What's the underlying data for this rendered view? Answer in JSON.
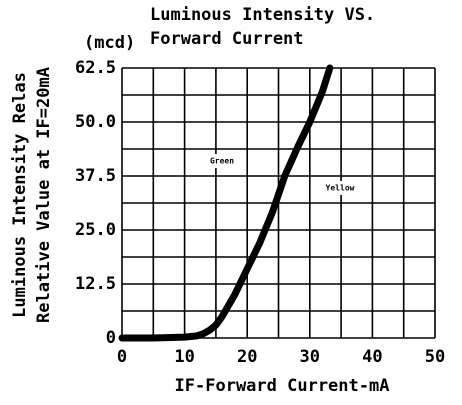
{
  "chart_data": {
    "type": "line",
    "title": "Luminous Intensity VS.",
    "subtitle": "Forward Current",
    "y_unit": "(mcd)",
    "y_label": [
      "Luminous Intensity Relas",
      "Relative Value at IF=20mA"
    ],
    "x_label": "IF-Forward Current-mA",
    "annotations": [
      "Green",
      "Yellow"
    ],
    "x": [
      0,
      5,
      10,
      12,
      13,
      14,
      15,
      16,
      17,
      18,
      19,
      20,
      22,
      24,
      26,
      28,
      30,
      32,
      33.2
    ],
    "series": [
      {
        "color": "#000000",
        "values": [
          0,
          0,
          0.2,
          0.5,
          1,
          1.8,
          3,
          5,
          7.5,
          10,
          13,
          16,
          22,
          29,
          37.5,
          44,
          50,
          57,
          62.5
        ]
      }
    ],
    "xlim": [
      0,
      50
    ],
    "xticks": [
      0,
      10,
      20,
      30,
      40,
      50
    ],
    "xminor": [
      5,
      15,
      25,
      35,
      45
    ],
    "ylim": [
      0,
      62.5
    ],
    "yticks": [
      0,
      12.5,
      {
        "value": 25,
        "label": "25.0"
      },
      37.5,
      {
        "value": 50,
        "label": "50.0"
      },
      62.5
    ],
    "yminor": [
      6.25,
      18.75,
      31.25,
      43.75,
      56.25
    ],
    "grid": true
  }
}
